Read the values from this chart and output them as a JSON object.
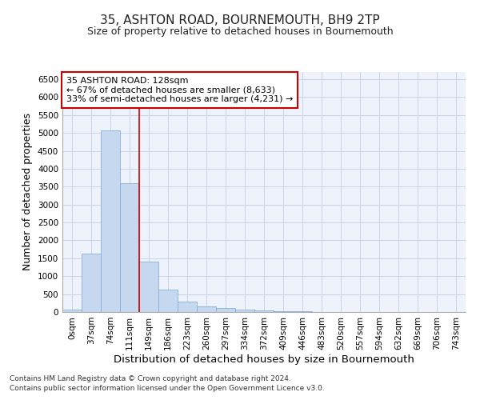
{
  "title_line1": "35, ASHTON ROAD, BOURNEMOUTH, BH9 2TP",
  "title_line2": "Size of property relative to detached houses in Bournemouth",
  "xlabel": "Distribution of detached houses by size in Bournemouth",
  "ylabel": "Number of detached properties",
  "footnote1": "Contains HM Land Registry data © Crown copyright and database right 2024.",
  "footnote2": "Contains public sector information licensed under the Open Government Licence v3.0.",
  "bar_labels": [
    "0sqm",
    "37sqm",
    "74sqm",
    "111sqm",
    "149sqm",
    "186sqm",
    "223sqm",
    "260sqm",
    "297sqm",
    "334sqm",
    "372sqm",
    "409sqm",
    "446sqm",
    "483sqm",
    "520sqm",
    "557sqm",
    "594sqm",
    "632sqm",
    "669sqm",
    "706sqm",
    "743sqm"
  ],
  "bar_values": [
    75,
    1640,
    5060,
    3590,
    1400,
    620,
    290,
    155,
    105,
    75,
    50,
    30,
    30,
    0,
    0,
    0,
    0,
    0,
    0,
    0,
    0
  ],
  "bar_color": "#c5d8f0",
  "bar_edgecolor": "#8ab0d8",
  "grid_color": "#c8d4e8",
  "vline_x": 3.5,
  "vline_color": "#cc0000",
  "annotation_text": "35 ASHTON ROAD: 128sqm\n← 67% of detached houses are smaller (8,633)\n33% of semi-detached houses are larger (4,231) →",
  "annotation_box_edgecolor": "#cc0000",
  "annotation_box_facecolor": "#ffffff",
  "ylim": [
    0,
    6700
  ],
  "yticks": [
    0,
    500,
    1000,
    1500,
    2000,
    2500,
    3000,
    3500,
    4000,
    4500,
    5000,
    5500,
    6000,
    6500
  ],
  "title_fontsize": 11,
  "subtitle_fontsize": 9,
  "axis_label_fontsize": 9,
  "tick_fontsize": 7.5,
  "annotation_fontsize": 8,
  "footnote_fontsize": 6.5
}
